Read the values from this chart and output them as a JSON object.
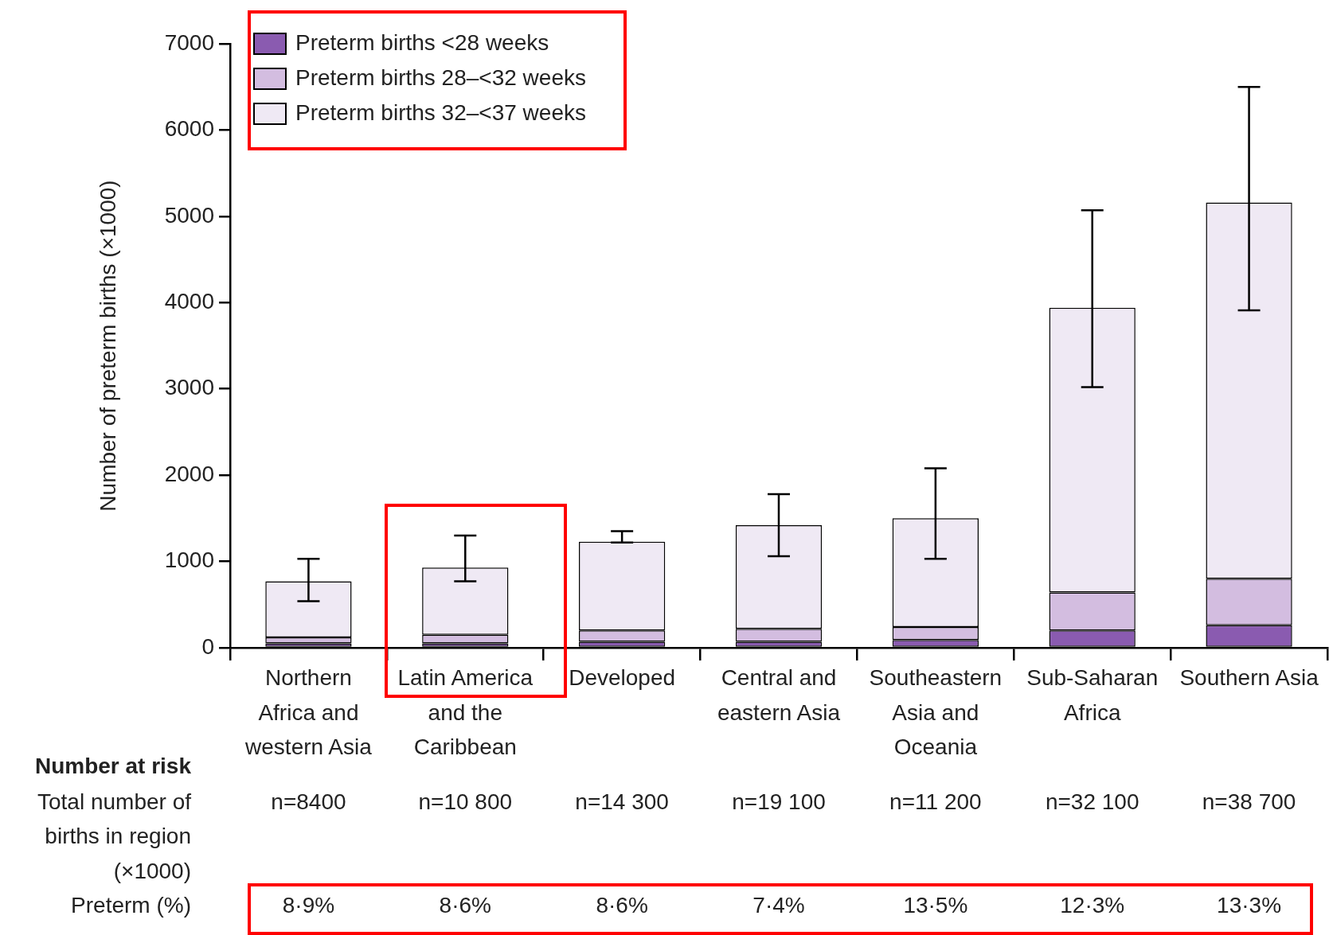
{
  "chart_data": {
    "type": "bar",
    "stacked": true,
    "ylabel": "Number of preterm births (×1000)",
    "categories": [
      "Northern Africa and western Asia",
      "Latin America and the Caribbean",
      "Developed",
      "Central and eastern Asia",
      "Southeastern Asia and Oceania",
      "Sub-Saharan Africa",
      "Southern Asia"
    ],
    "series": [
      {
        "name": "Preterm births <28 weeks",
        "color": "#8a5bb0",
        "values": [
          50,
          50,
          70,
          70,
          90,
          200,
          260
        ]
      },
      {
        "name": "Preterm births 28–<32 weeks",
        "color": "#d3bde0",
        "values": [
          70,
          100,
          130,
          150,
          150,
          440,
          540
        ]
      },
      {
        "name": "Preterm births 32–<37 weeks",
        "color": "#efe9f4",
        "values": [
          650,
          780,
          1030,
          1200,
          1260,
          3300,
          4360
        ],
        "errors": [
          [
            540,
            1030
          ],
          [
            770,
            1300
          ],
          [
            1220,
            1350
          ],
          [
            1060,
            1780
          ],
          [
            1030,
            2080
          ],
          [
            3020,
            5070
          ],
          [
            3910,
            6500
          ]
        ]
      }
    ],
    "ylim": [
      0,
      7000
    ],
    "yticks": [
      0,
      1000,
      2000,
      3000,
      4000,
      5000,
      6000,
      7000
    ],
    "grid": false,
    "legend": "top left",
    "annotations": [
      "Number at risk",
      "Total number of births in region (×1000)",
      "n=8400",
      "n=10 800",
      "n=14 300",
      "n=19 100",
      "n=11 200",
      "n=32 100",
      "n=38 700",
      "Preterm (%)",
      "8·9%",
      "8·6%",
      "8·6%",
      "7·4%",
      "13·5%",
      "12·3%",
      "13·3%"
    ]
  }
}
